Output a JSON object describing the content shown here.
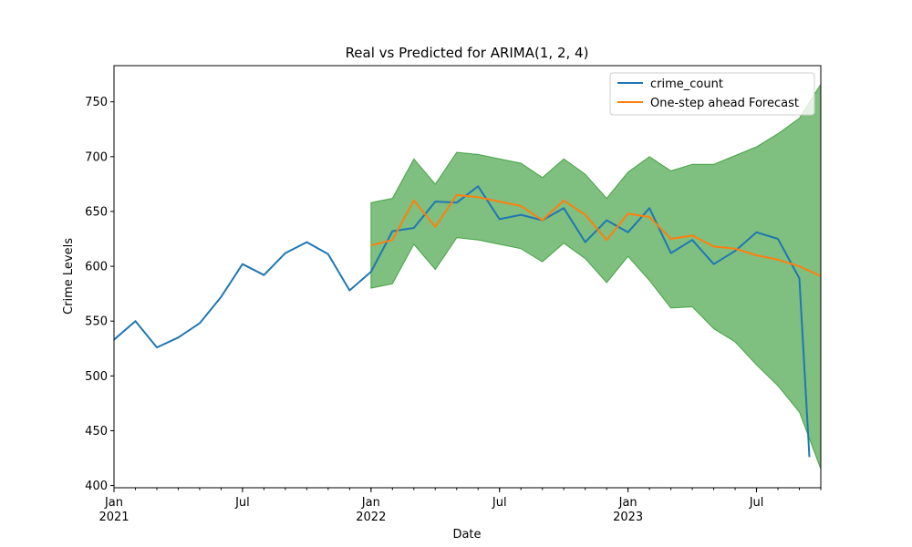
{
  "chart_data": {
    "type": "line",
    "title": "Real vs Predicted for ARIMA(1, 2, 4)",
    "xlabel": "Date",
    "ylabel": "Crime Levels",
    "xlim": [
      "2021-01",
      "2023-10"
    ],
    "ylim": [
      398,
      783
    ],
    "yticks": [
      400,
      450,
      500,
      550,
      600,
      650,
      700,
      750
    ],
    "xticks": [
      {
        "date": "2021-01",
        "label": "Jan",
        "sublabel": "2021"
      },
      {
        "date": "2021-07",
        "label": "Jul",
        "sublabel": ""
      },
      {
        "date": "2022-01",
        "label": "Jan",
        "sublabel": "2022"
      },
      {
        "date": "2022-07",
        "label": "Jul",
        "sublabel": ""
      },
      {
        "date": "2023-01",
        "label": "Jan",
        "sublabel": "2023"
      },
      {
        "date": "2023-07",
        "label": "Jul",
        "sublabel": ""
      }
    ],
    "grid": false,
    "legend_position": "top-right",
    "series": [
      {
        "name": "crime_count",
        "color": "#1f77b4",
        "x": [
          "2021-01",
          "2021-02",
          "2021-03",
          "2021-04",
          "2021-05",
          "2021-06",
          "2021-07",
          "2021-08",
          "2021-09",
          "2021-10",
          "2021-11",
          "2021-12",
          "2022-01",
          "2022-02",
          "2022-03",
          "2022-04",
          "2022-05",
          "2022-06",
          "2022-07",
          "2022-08",
          "2022-09",
          "2022-10",
          "2022-11",
          "2022-12",
          "2023-01",
          "2023-02",
          "2023-03",
          "2023-04",
          "2023-05",
          "2023-06",
          "2023-07",
          "2023-08",
          "2023-09"
        ],
        "values": [
          533,
          550,
          526,
          535,
          548,
          572,
          602,
          592,
          612,
          622,
          611,
          578,
          595,
          632,
          635,
          659,
          658,
          673,
          643,
          647,
          642,
          653,
          622,
          642,
          631,
          653,
          612,
          624,
          602,
          614,
          631,
          625,
          589
        ]
      },
      {
        "name": "One-step ahead Forecast",
        "color": "#ff7f0e",
        "x": [
          "2022-01",
          "2022-02",
          "2022-03",
          "2022-04",
          "2022-05",
          "2022-06",
          "2022-07",
          "2022-08",
          "2022-09",
          "2022-10",
          "2022-11",
          "2022-12",
          "2023-01",
          "2023-02",
          "2023-03",
          "2023-04",
          "2023-05",
          "2023-06",
          "2023-07",
          "2023-08",
          "2023-09",
          "2023-10"
        ],
        "values": [
          619,
          624,
          660,
          636,
          665,
          663,
          659,
          655,
          642,
          660,
          647,
          624,
          648,
          645,
          625,
          628,
          618,
          616,
          610,
          606,
          600,
          591
        ]
      }
    ],
    "extra_blue_tail": {
      "x": "2023-09-15",
      "value": 426
    },
    "confidence_band": {
      "color": "#008000",
      "opacity": 0.5,
      "x": [
        "2022-01",
        "2022-02",
        "2022-03",
        "2022-04",
        "2022-05",
        "2022-06",
        "2022-07",
        "2022-08",
        "2022-09",
        "2022-10",
        "2022-11",
        "2022-12",
        "2023-01",
        "2023-02",
        "2023-03",
        "2023-04",
        "2023-05",
        "2023-06",
        "2023-07",
        "2023-08",
        "2023-09",
        "2023-10"
      ],
      "lower": [
        580,
        584,
        620,
        597,
        626,
        624,
        620,
        616,
        604,
        621,
        607,
        585,
        609,
        587,
        562,
        563,
        543,
        531,
        510,
        491,
        467,
        415
      ],
      "upper": [
        658,
        662,
        698,
        675,
        704,
        702,
        698,
        694,
        681,
        698,
        684,
        662,
        686,
        700,
        687,
        693,
        693,
        701,
        709,
        721,
        735,
        766
      ]
    }
  }
}
